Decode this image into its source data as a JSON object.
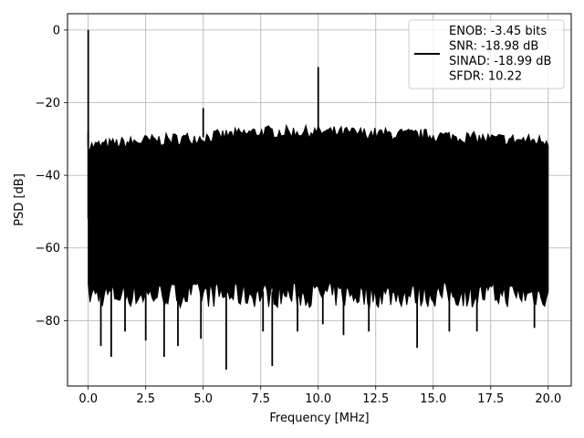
{
  "chart_data": {
    "type": "line",
    "xlabel": "Frequency [MHz]",
    "ylabel": "PSD [dB]",
    "xlim": [
      -0.9,
      21.0
    ],
    "ylim": [
      -98,
      4.5
    ],
    "xticks": [
      0.0,
      2.5,
      5.0,
      7.5,
      10.0,
      12.5,
      15.0,
      17.5,
      20.0
    ],
    "xtick_labels": [
      "0.0",
      "2.5",
      "5.0",
      "7.5",
      "10.0",
      "12.5",
      "15.0",
      "17.5",
      "20.0"
    ],
    "yticks": [
      0,
      -20,
      -40,
      -60,
      -80
    ],
    "ytick_labels": [
      "0",
      "−20",
      "−40",
      "−60",
      "−80"
    ],
    "grid": true,
    "legend_position": "top-right",
    "colors": {
      "line": "#000000",
      "grid": "#b0b0b0",
      "frame": "#000000"
    },
    "series": [
      {
        "legend_lines": [
          "ENOB: -3.45 bits",
          "SNR: -18.98 dB",
          "SINAD: -18.99 dB",
          "SFDR: 10.22"
        ],
        "noise_band": {
          "x_range": [
            0.0,
            20.0
          ],
          "upper_envelope": [
            {
              "x": 0.0,
              "y": -32
            },
            {
              "x": 2.5,
              "y": -30.5
            },
            {
              "x": 5.0,
              "y": -29.5
            },
            {
              "x": 7.5,
              "y": -28
            },
            {
              "x": 10.0,
              "y": -28
            },
            {
              "x": 12.5,
              "y": -28.5
            },
            {
              "x": 15.0,
              "y": -29
            },
            {
              "x": 17.5,
              "y": -30
            },
            {
              "x": 20.0,
              "y": -30.5
            }
          ],
          "typical_lower": -75
        },
        "peaks": [
          {
            "x": 0.0,
            "y": 0.0
          },
          {
            "x": 5.0,
            "y": -21.5
          },
          {
            "x": 10.0,
            "y": -10.2
          }
        ],
        "dips": [
          {
            "x": 0.55,
            "y": -87
          },
          {
            "x": 1.0,
            "y": -90
          },
          {
            "x": 1.6,
            "y": -83
          },
          {
            "x": 2.5,
            "y": -85.5
          },
          {
            "x": 3.3,
            "y": -90
          },
          {
            "x": 3.9,
            "y": -87
          },
          {
            "x": 4.9,
            "y": -85
          },
          {
            "x": 6.0,
            "y": -93.5
          },
          {
            "x": 7.6,
            "y": -83
          },
          {
            "x": 8.0,
            "y": -92.5
          },
          {
            "x": 9.1,
            "y": -83
          },
          {
            "x": 10.2,
            "y": -81
          },
          {
            "x": 11.1,
            "y": -84
          },
          {
            "x": 12.2,
            "y": -83
          },
          {
            "x": 14.3,
            "y": -87.5
          },
          {
            "x": 15.7,
            "y": -83
          },
          {
            "x": 16.9,
            "y": -83
          },
          {
            "x": 19.4,
            "y": -82
          }
        ]
      }
    ]
  }
}
